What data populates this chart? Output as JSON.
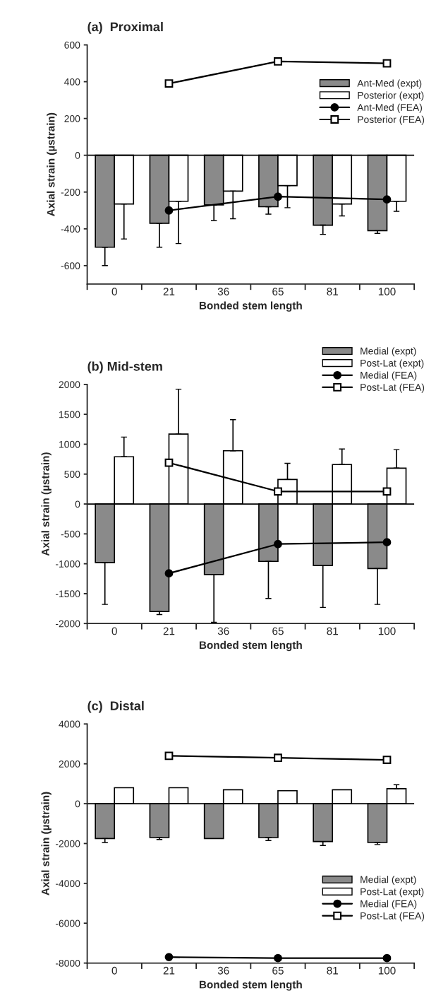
{
  "chart_data": [
    {
      "type": "bar",
      "title": "(a)  Proximal",
      "xlabel": "Bonded stem length",
      "ylabel": "Axial strain (µstrain)",
      "categories": [
        "0",
        "21",
        "36",
        "65",
        "81",
        "100"
      ],
      "ylim": [
        -700,
        600
      ],
      "yticks": [
        -600,
        -400,
        -200,
        0,
        200,
        400,
        600
      ],
      "grid": false,
      "legend": "top right",
      "ref_lines": [
        {
          "axis": "y",
          "value": 0
        }
      ],
      "series": [
        {
          "name": "Ant-Med (expt)",
          "type": "bar",
          "color": "#8a8a8a",
          "values": [
            -500,
            -370,
            -270,
            -280,
            -380,
            -410
          ],
          "errors": [
            [
              -600,
              -500
            ],
            [
              -500,
              -370
            ],
            [
              -355,
              -270
            ],
            [
              -320,
              -280
            ],
            [
              -430,
              -380
            ],
            [
              -425,
              -410
            ]
          ]
        },
        {
          "name": "Posterior (expt)",
          "type": "bar",
          "color": "#ffffff",
          "values": [
            -265,
            -250,
            -195,
            -165,
            -265,
            -250
          ],
          "errors": [
            [
              -455,
              -265
            ],
            [
              -480,
              -250
            ],
            [
              -345,
              -195
            ],
            [
              -285,
              -165
            ],
            [
              -330,
              -265
            ],
            [
              -305,
              -250
            ]
          ]
        },
        {
          "name": "Ant-Med (FEA)",
          "type": "line",
          "color": "#000000",
          "marker": "circle",
          "x": [
            "21",
            "65",
            "100"
          ],
          "values": [
            -300,
            -225,
            -240
          ]
        },
        {
          "name": "Posterior (FEA)",
          "type": "line",
          "color": "#000000",
          "marker": "square",
          "x": [
            "21",
            "65",
            "100"
          ],
          "values": [
            390,
            510,
            500
          ]
        }
      ]
    },
    {
      "type": "bar",
      "title": "(b) Mid-stem",
      "xlabel": "Bonded stem length",
      "ylabel": "Axial strain (µstrain)",
      "categories": [
        "0",
        "21",
        "36",
        "65",
        "81",
        "100"
      ],
      "ylim": [
        -2000,
        2000
      ],
      "yticks": [
        -2000,
        -1500,
        -1000,
        -500,
        0,
        500,
        1000,
        1500,
        2000
      ],
      "grid": false,
      "legend": "top right",
      "ref_lines": [
        {
          "axis": "y",
          "value": 0
        }
      ],
      "series": [
        {
          "name": "Medial (expt)",
          "type": "bar",
          "color": "#8a8a8a",
          "values": [
            -980,
            -1800,
            -1180,
            -960,
            -1030,
            -1080
          ],
          "errors": [
            [
              -1680,
              -980
            ],
            [
              -1850,
              -1800
            ],
            [
              -1980,
              -1180
            ],
            [
              -1580,
              -960
            ],
            [
              -1730,
              -1030
            ],
            [
              -1680,
              -1080
            ]
          ]
        },
        {
          "name": "Post-Lat (expt)",
          "type": "bar",
          "color": "#ffffff",
          "values": [
            790,
            1170,
            890,
            410,
            660,
            600
          ],
          "errors": [
            [
              790,
              1120
            ],
            [
              1170,
              1920
            ],
            [
              890,
              1410
            ],
            [
              410,
              680
            ],
            [
              660,
              920
            ],
            [
              600,
              910
            ]
          ]
        },
        {
          "name": "Medial (FEA)",
          "type": "line",
          "color": "#000000",
          "marker": "circle",
          "x": [
            "21",
            "65",
            "100"
          ],
          "values": [
            -1160,
            -670,
            -640
          ]
        },
        {
          "name": "Post-Lat (FEA)",
          "type": "line",
          "color": "#000000",
          "marker": "square",
          "x": [
            "21",
            "65",
            "100"
          ],
          "values": [
            690,
            210,
            210
          ]
        }
      ]
    },
    {
      "type": "bar",
      "title": "(c)  Distal",
      "xlabel": "Bonded stem length",
      "ylabel": "Axial strain (µstrain)",
      "categories": [
        "0",
        "21",
        "36",
        "65",
        "81",
        "100"
      ],
      "ylim": [
        -8000,
        4000
      ],
      "yticks": [
        -8000,
        -6000,
        -4000,
        -2000,
        0,
        2000,
        4000
      ],
      "grid": false,
      "legend": "right",
      "ref_lines": [
        {
          "axis": "y",
          "value": 0
        }
      ],
      "series": [
        {
          "name": "Medial (expt)",
          "type": "bar",
          "color": "#8a8a8a",
          "values": [
            -1750,
            -1700,
            -1750,
            -1700,
            -1900,
            -1950
          ],
          "errors": [
            [
              -1950,
              -1750
            ],
            [
              -1800,
              -1700
            ],
            null,
            [
              -1850,
              -1700
            ],
            [
              -2100,
              -1900
            ],
            [
              -2050,
              -1950
            ]
          ]
        },
        {
          "name": "Post-Lat (expt)",
          "type": "bar",
          "color": "#ffffff",
          "values": [
            800,
            800,
            700,
            650,
            700,
            750
          ],
          "errors": [
            null,
            null,
            null,
            null,
            null,
            [
              750,
              950
            ]
          ]
        },
        {
          "name": "Medial (FEA)",
          "type": "line",
          "color": "#000000",
          "marker": "circle",
          "x": [
            "21",
            "65",
            "100"
          ],
          "values": [
            -7700,
            -7750,
            -7750
          ]
        },
        {
          "name": "Post-Lat (FEA)",
          "type": "line",
          "color": "#000000",
          "marker": "square",
          "x": [
            "21",
            "65",
            "100"
          ],
          "values": [
            2400,
            2300,
            2200
          ]
        }
      ]
    }
  ]
}
